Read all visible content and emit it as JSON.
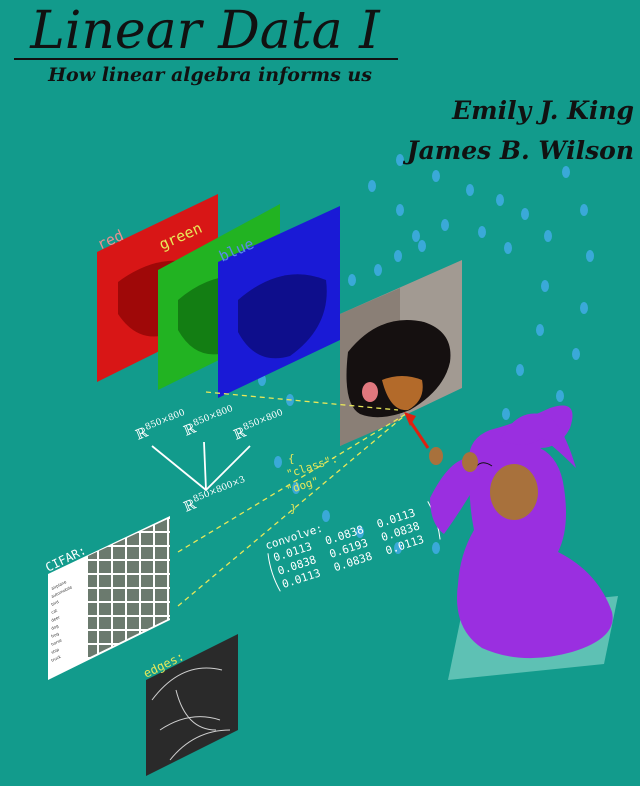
{
  "cover": {
    "title": "Linear Data I",
    "subtitle": "How linear algebra informs us",
    "authors": [
      "Emily J. King",
      "James B. Wilson"
    ]
  },
  "illustration": {
    "channel_labels": [
      "red",
      "green",
      "blue"
    ],
    "space_label": "ℝ",
    "space_dims": [
      "850×800",
      "850×800",
      "850×800",
      "850×800×3"
    ],
    "json_lines": [
      "{",
      "\"class\":",
      "\"dog\"",
      "}"
    ],
    "convolve_label": "convolve:",
    "convolve_rows": [
      [
        "0.0113",
        "0.0838",
        "0.0113"
      ],
      [
        "0.0838",
        "0.6193",
        "0.0838"
      ],
      [
        "0.0113",
        "0.0838",
        "0.0113"
      ]
    ],
    "dataset_label": "CIFAR:",
    "dataset_classes": [
      "airplane",
      "automobile",
      "bird",
      "cat",
      "deer",
      "dog",
      "frog",
      "horse",
      "ship",
      "truck"
    ],
    "edges_label": "edges:"
  },
  "colors": {
    "background": "#129b8c",
    "red_channel": "#d81616",
    "green_channel": "#22b322",
    "blue_channel": "#1a1ad6",
    "wizard_robe": "#9a2fe0",
    "annotation_text": "#e8e85a",
    "dots": "#3aa9d8"
  },
  "icons": [
    "wizard-figure",
    "dog-photo",
    "arrow-icon"
  ]
}
